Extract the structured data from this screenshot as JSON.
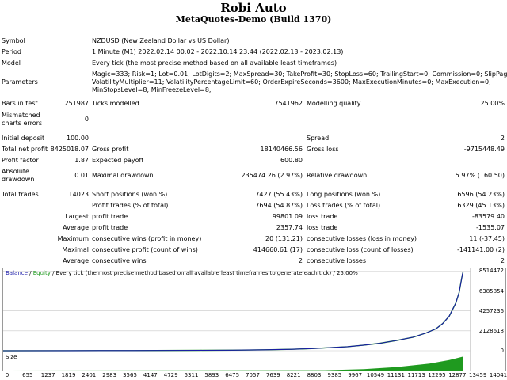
{
  "header": {
    "title": "Robi Auto",
    "subtitle": "MetaQuotes-Demo (Build 1370)"
  },
  "rows": [
    {
      "top": 47,
      "cells": [
        {
          "x": 2,
          "t": "Symbol"
        },
        {
          "x": 116,
          "t": "NZDUSD (New Zealand Dollar vs US Dollar)"
        }
      ]
    },
    {
      "top": 61,
      "cells": [
        {
          "x": 2,
          "t": "Period"
        },
        {
          "x": 116,
          "t": "1 Minute (M1) 2022.02.14 00:02 - 2022.10.14 23:44 (2022.02.13 - 2023.02.13)"
        }
      ]
    },
    {
      "top": 75,
      "cells": [
        {
          "x": 2,
          "t": "Model"
        },
        {
          "x": 116,
          "t": "Every tick (the most precise method based on all available least timeframes)"
        }
      ]
    },
    {
      "top": 89,
      "cells": [
        {
          "x": 116,
          "t": "Magic=333; Risk=1; Lot=0.01; LotDigits=2; MaxSpread=30; TakeProfit=30; StopLoss=60; TrailingStart=0; Commission=0; SlipPage=3;"
        }
      ]
    },
    {
      "top": 99,
      "cells": [
        {
          "x": 2,
          "t": "Parameters"
        },
        {
          "x": 116,
          "t": "VolatilityMultiplier=11; VolatilityPercentageLimit=60; OrderExpireSeconds=3600; MaxExecutionMinutes=0; MaxExecution=0;"
        }
      ]
    },
    {
      "top": 109,
      "cells": [
        {
          "x": 116,
          "t": "MinStopsLevel=8; MinFreezeLevel=8;"
        }
      ]
    },
    {
      "top": 126,
      "cells": [
        {
          "x": 2,
          "t": "Bars in test"
        },
        {
          "r": 112,
          "t": "251987"
        },
        {
          "x": 116,
          "t": "Ticks modelled"
        },
        {
          "r": 382,
          "t": "7541962"
        },
        {
          "x": 387,
          "t": "Modelling quality"
        },
        {
          "r": 637,
          "t": "25.00%"
        }
      ]
    },
    {
      "top": 141,
      "cells": [
        {
          "x": 2,
          "t": "Mismatched"
        }
      ]
    },
    {
      "top": 146,
      "cells": [
        {
          "r": 112,
          "t": "0"
        }
      ]
    },
    {
      "top": 151,
      "cells": [
        {
          "x": 2,
          "t": "charts errors"
        }
      ]
    },
    {
      "top": 170,
      "cells": [
        {
          "x": 2,
          "t": "Initial deposit"
        },
        {
          "r": 112,
          "t": "100.00"
        },
        {
          "x": 387,
          "t": "Spread"
        },
        {
          "r": 637,
          "t": "2"
        }
      ]
    },
    {
      "top": 184,
      "cells": [
        {
          "x": 2,
          "t": "Total net profit"
        },
        {
          "r": 112,
          "t": "8425018.07"
        },
        {
          "x": 116,
          "t": "Gross profit"
        },
        {
          "r": 382,
          "t": "18140466.56"
        },
        {
          "x": 387,
          "t": "Gross loss"
        },
        {
          "r": 637,
          "t": "-9715448.49"
        }
      ]
    },
    {
      "top": 198,
      "cells": [
        {
          "x": 2,
          "t": "Profit factor"
        },
        {
          "r": 112,
          "t": "1.87"
        },
        {
          "x": 116,
          "t": "Expected payoff"
        },
        {
          "r": 382,
          "t": "600.80"
        }
      ]
    },
    {
      "top": 212,
      "cells": [
        {
          "x": 2,
          "t": "Absolute"
        }
      ]
    },
    {
      "top": 217,
      "cells": [
        {
          "r": 112,
          "t": "0.01"
        },
        {
          "x": 116,
          "t": "Maximal drawdown"
        },
        {
          "r": 382,
          "t": "235474.26 (2.97%)"
        },
        {
          "x": 387,
          "t": "Relative drawdown"
        },
        {
          "r": 637,
          "t": "5.97% (160.50)"
        }
      ]
    },
    {
      "top": 222,
      "cells": [
        {
          "x": 2,
          "t": "drawdown"
        }
      ]
    },
    {
      "top": 241,
      "cells": [
        {
          "x": 2,
          "t": "Total trades"
        },
        {
          "r": 112,
          "t": "14023"
        },
        {
          "x": 116,
          "t": "Short positions (won %)"
        },
        {
          "r": 382,
          "t": "7427 (55.43%)"
        },
        {
          "x": 387,
          "t": "Long positions (won %)"
        },
        {
          "r": 637,
          "t": "6596 (54.23%)"
        }
      ]
    },
    {
      "top": 255,
      "cells": [
        {
          "x": 116,
          "t": "Profit trades (% of total)"
        },
        {
          "r": 382,
          "t": "7694 (54.87%)"
        },
        {
          "x": 387,
          "t": "Loss trades (% of total)"
        },
        {
          "r": 637,
          "t": "6329 (45.13%)"
        }
      ]
    },
    {
      "top": 269,
      "cells": [
        {
          "r": 112,
          "t": "Largest"
        },
        {
          "x": 116,
          "t": "profit trade"
        },
        {
          "r": 382,
          "t": "99801.09"
        },
        {
          "x": 387,
          "t": "loss trade"
        },
        {
          "r": 637,
          "t": "-83579.40"
        }
      ]
    },
    {
      "top": 283,
      "cells": [
        {
          "r": 112,
          "t": "Average"
        },
        {
          "x": 116,
          "t": "profit trade"
        },
        {
          "r": 382,
          "t": "2357.74"
        },
        {
          "x": 387,
          "t": "loss trade"
        },
        {
          "r": 637,
          "t": "-1535.07"
        }
      ]
    },
    {
      "top": 297,
      "cells": [
        {
          "r": 112,
          "t": "Maximum"
        },
        {
          "x": 116,
          "t": "consecutive wins (profit in money)"
        },
        {
          "r": 382,
          "t": "20 (131.21)"
        },
        {
          "x": 387,
          "t": "consecutive losses (loss in money)"
        },
        {
          "r": 637,
          "t": "11 (-37.45)"
        }
      ]
    },
    {
      "top": 311,
      "cells": [
        {
          "r": 112,
          "t": "Maximal"
        },
        {
          "x": 116,
          "t": "consecutive profit (count of wins)"
        },
        {
          "r": 382,
          "t": "414660.61 (17)"
        },
        {
          "x": 387,
          "t": "consecutive loss (count of losses)"
        },
        {
          "r": 637,
          "t": "-141141.00 (2)"
        }
      ]
    },
    {
      "top": 325,
      "cells": [
        {
          "r": 112,
          "t": "Average"
        },
        {
          "x": 116,
          "t": "consecutive wins"
        },
        {
          "r": 382,
          "t": "2"
        },
        {
          "x": 387,
          "t": "consecutive losses"
        },
        {
          "r": 637,
          "t": "2"
        }
      ]
    }
  ],
  "chart": {
    "legend_balance": "Balance",
    "legend_sep1": " / ",
    "legend_equity": "Equity",
    "legend_rest": " / Every tick (the most precise method based on all available least timeframes to generate each tick) / 25.00%",
    "size_label": "Size",
    "colors": {
      "balance": "#1a1aa8",
      "equity": "#1f9a1f",
      "size": "#1f9a1f",
      "grid": "#c8c8c8"
    }
  },
  "chart_data": {
    "type": "line",
    "y_ticks": [
      "8514472",
      "6385854",
      "4257236",
      "2128618",
      "0"
    ],
    "y_tick_values": [
      8514472,
      6385854,
      4257236,
      2128618,
      0
    ],
    "ylim": [
      0,
      8800000
    ],
    "x_ticks": [
      "0",
      "655",
      "1237",
      "1819",
      "2401",
      "2983",
      "3565",
      "4147",
      "4729",
      "5311",
      "5893",
      "6475",
      "7057",
      "7639",
      "8221",
      "8803",
      "9385",
      "9967",
      "10549",
      "11131",
      "11713",
      "12295",
      "12877",
      "13459",
      "14041"
    ],
    "xlim": [
      0,
      14250
    ],
    "series": [
      {
        "x": [
          0,
          2000,
          4000,
          6000,
          7000,
          8000,
          8800,
          9400,
          10000,
          10500,
          11000,
          11500,
          12000,
          12500,
          12900,
          13200,
          13400,
          13600,
          13800,
          13900,
          14000,
          14023
        ],
        "values": [
          100,
          8000,
          20000,
          40000,
          60000,
          100000,
          150000,
          230000,
          330000,
          430000,
          600000,
          800000,
          1100000,
          1450000,
          1900000,
          2350000,
          2900000,
          3700000,
          5100000,
          6200000,
          8100000,
          8425018
        ]
      }
    ],
    "size_ramp": {
      "x": [
        0,
        9800,
        11000,
        12000,
        13000,
        13600,
        14023
      ],
      "values": [
        0,
        0.02,
        0.08,
        0.2,
        0.4,
        0.6,
        0.8
      ]
    }
  }
}
